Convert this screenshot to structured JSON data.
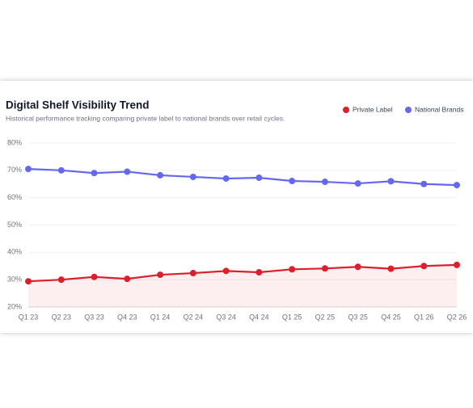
{
  "chart_data": {
    "type": "line",
    "title": "Digital Shelf Visibility Trend",
    "subtitle": "Historical performance tracking comparing private label to national brands over retail cycles.",
    "categories": [
      "Q1 23",
      "Q2 23",
      "Q3 23",
      "Q4 23",
      "Q1 24",
      "Q2 24",
      "Q3 24",
      "Q4 24",
      "Q1 25",
      "Q2 25",
      "Q3 25",
      "Q4 25",
      "Q1 26",
      "Q2 26"
    ],
    "series": [
      {
        "name": "Private Label",
        "color": "#dc1f2a",
        "area": true,
        "values": [
          29.4,
          30,
          31,
          30.3,
          31.8,
          32.4,
          33.2,
          32.7,
          33.8,
          34.1,
          34.7,
          34,
          35,
          35.4
        ]
      },
      {
        "name": "National Brands",
        "color": "#6468ef",
        "values": [
          70.5,
          70,
          69,
          69.5,
          68.2,
          67.6,
          67,
          67.3,
          66.1,
          65.8,
          65.2,
          66,
          65,
          64.6
        ]
      }
    ],
    "ylim": [
      20,
      80
    ],
    "yticks": [
      {
        "value": 20,
        "label": "20%"
      },
      {
        "value": 30,
        "label": "30%"
      },
      {
        "value": 40,
        "label": "40%"
      },
      {
        "value": 50,
        "label": "50%"
      },
      {
        "value": 60,
        "label": "60%"
      },
      {
        "value": 70,
        "label": "70%"
      },
      {
        "value": 80,
        "label": "80%"
      }
    ],
    "grid": true,
    "legend": "top-right"
  }
}
